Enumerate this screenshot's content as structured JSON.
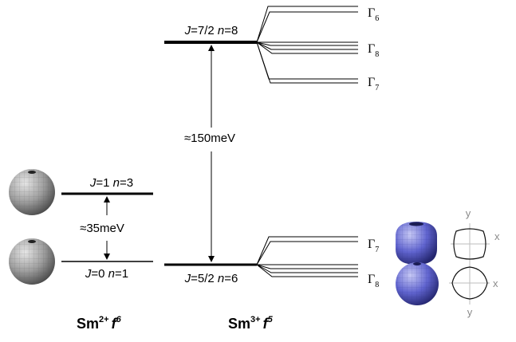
{
  "sm2": {
    "title_base": "Sm",
    "title_sup": "2+",
    "title_f": "f",
    "title_fsup": "6",
    "upper_level": "J=1 n=3",
    "lower_level": "J=0 n=1",
    "gap": "≈35meV"
  },
  "sm3": {
    "title_base": "Sm",
    "title_sup": "3+",
    "title_f": "f",
    "title_fsup": "5",
    "upper_level": "J=7/2 n=8",
    "lower_level": "J=5/2 n=6",
    "gap": "≈150meV"
  },
  "gamma_labels": {
    "upper": [
      {
        "letter": "Γ",
        "sub": "6"
      },
      {
        "letter": "Γ",
        "sub": "8"
      },
      {
        "letter": "Γ",
        "sub": "7"
      }
    ],
    "lower": [
      {
        "letter": "Γ",
        "sub": "7"
      },
      {
        "letter": "Γ",
        "sub": "8"
      }
    ]
  },
  "axes": {
    "y_top": "y",
    "x_top": "x",
    "y_bottom": "y",
    "x_bottom": "x"
  },
  "colors": {
    "sphere_gray": "#9a9a9a",
    "orbital_blue": "#5a5fd0",
    "axis_gray": "#8a8a8a"
  },
  "icons": {
    "sphere": "wireframe-sphere",
    "orbital": "crystal-field-orbital"
  }
}
